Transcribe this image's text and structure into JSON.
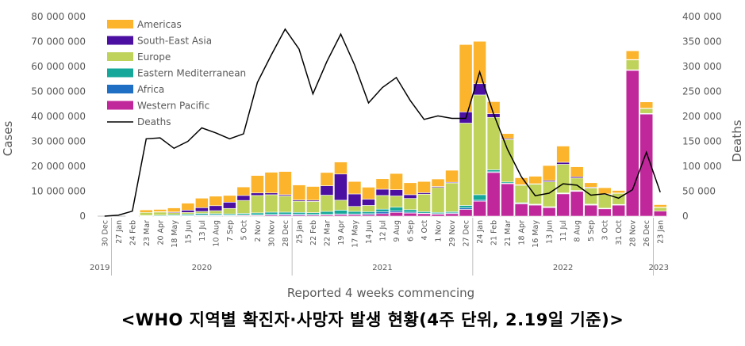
{
  "chart_data": {
    "type": "bar",
    "stacked": true,
    "title": "",
    "xlabel": "Reported 4 weeks commencing",
    "ylabel": "Cases",
    "y2label": "Deaths",
    "ylim": [
      0,
      80000000
    ],
    "y2lim": [
      0,
      400000
    ],
    "yticks": [
      "0",
      "10 000 000",
      "20 000 000",
      "30 000 000",
      "40 000 000",
      "50 000 000",
      "60 000 000",
      "70 000 000",
      "80 000 000"
    ],
    "y2ticks": [
      "0",
      "50 000",
      "100 000",
      "150 000",
      "200 000",
      "250 000",
      "300 000",
      "350 000",
      "400 000"
    ],
    "categories": [
      "30 Dec",
      "27 Jan",
      "24 Feb",
      "23 Mar",
      "20 Apr",
      "18 May",
      "15 Jun",
      "13 Jul",
      "10 Aug",
      "7 Sep",
      "5 Oct",
      "2 Nov",
      "30 Nov",
      "28 Dec",
      "25 Jan",
      "22 Feb",
      "22 Mar",
      "19 Apr",
      "17 May",
      "14 Jun",
      "12 Jul",
      "9 Aug",
      "6 Sep",
      "4 Oct",
      "1 Nov",
      "29 Nov",
      "27 Dec",
      "24 Jan",
      "21 Feb",
      "21 Mar",
      "18 Apr",
      "16 May",
      "13 Jun",
      "11 Jul",
      "8 Aug",
      "5 Sep",
      "3 Oct",
      "31 Oct",
      "28 Nov",
      "26 Dec",
      "23 Jan"
    ],
    "years": [
      {
        "label": "2019",
        "start": 0,
        "end": 0
      },
      {
        "label": "2020",
        "start": 1,
        "end": 13
      },
      {
        "label": "2021",
        "start": 14,
        "end": 26
      },
      {
        "label": "2022",
        "start": 27,
        "end": 39
      },
      {
        "label": "2023",
        "start": 40,
        "end": 40
      }
    ],
    "legend_position": "top-left",
    "series": [
      {
        "name": "Western Pacific",
        "color": "#C0279B",
        "values": [
          0,
          0,
          0.1,
          0.1,
          0.1,
          0.1,
          0.1,
          0.2,
          0.2,
          0.2,
          0.3,
          0.3,
          0.4,
          0.4,
          0.4,
          0.4,
          0.5,
          0.6,
          0.6,
          0.6,
          1.0,
          1.5,
          1.2,
          1.0,
          0.8,
          1.0,
          2.7,
          6.0,
          17.5,
          13.0,
          5.0,
          4.5,
          3.5,
          9.0,
          10.0,
          4.5,
          3.0,
          4.5,
          58.5,
          41.0,
          2.0
        ]
      },
      {
        "name": "Africa",
        "color": "#1F6FC5",
        "values": [
          0,
          0,
          0,
          0,
          0,
          0.1,
          0.2,
          0.3,
          0.3,
          0.2,
          0.2,
          0.2,
          0.3,
          0.4,
          0.4,
          0.3,
          0.2,
          0.3,
          0.3,
          0.4,
          0.8,
          0.6,
          0.4,
          0.2,
          0.2,
          0.3,
          0.6,
          0.4,
          0.3,
          0.2,
          0.1,
          0.1,
          0.1,
          0.1,
          0.1,
          0.1,
          0.1,
          0.1,
          0.1,
          0.1,
          0
        ]
      },
      {
        "name": "Eastern Mediterranean",
        "color": "#15A89A",
        "values": [
          0,
          0,
          0,
          0.2,
          0.3,
          0.4,
          0.5,
          0.6,
          0.5,
          0.5,
          0.6,
          0.8,
          0.9,
          0.8,
          0.7,
          0.7,
          1.2,
          1.5,
          1.0,
          0.8,
          1.0,
          1.5,
          1.0,
          0.6,
          0.5,
          0.5,
          1.0,
          2.2,
          0.8,
          0.5,
          0.3,
          0.2,
          0.2,
          0.2,
          0.2,
          0.2,
          0.1,
          0.1,
          0.1,
          0.1,
          0
        ]
      },
      {
        "name": "Europe",
        "color": "#BFD35B",
        "values": [
          0,
          0,
          0.1,
          1.2,
          1.3,
          0.8,
          0.7,
          0.8,
          1.2,
          2.2,
          5.2,
          7.0,
          7.0,
          6.5,
          4.5,
          4.5,
          6.5,
          4.0,
          2.0,
          2.5,
          5.5,
          4.5,
          4.5,
          7.0,
          10.0,
          11.5,
          33.0,
          40.0,
          21.0,
          17.0,
          7.0,
          8.0,
          10.0,
          11.5,
          5.0,
          6.5,
          5.5,
          4.5,
          4.0,
          2.0,
          1.5
        ]
      },
      {
        "name": "South-East Asia",
        "color": "#4B0FA1",
        "values": [
          0,
          0,
          0,
          0,
          0.1,
          0.3,
          0.9,
          1.5,
          2.0,
          2.5,
          2.0,
          1.0,
          0.7,
          0.5,
          0.5,
          0.5,
          3.8,
          10.5,
          5.0,
          2.5,
          2.5,
          2.5,
          1.5,
          0.6,
          0.4,
          0.3,
          4.5,
          4.5,
          1.5,
          0.4,
          0.2,
          0.2,
          0.5,
          0.8,
          0.5,
          0.3,
          0.2,
          0.1,
          0.1,
          0.1,
          0.1
        ]
      },
      {
        "name": "Americas",
        "color": "#FBB42C",
        "values": [
          0,
          0,
          0.1,
          1.0,
          0.9,
          1.6,
          2.8,
          3.8,
          3.8,
          2.7,
          3.4,
          7.0,
          8.3,
          9.3,
          6.0,
          5.5,
          5.3,
          4.8,
          5.0,
          4.8,
          4.2,
          6.5,
          4.8,
          4.5,
          3.0,
          4.8,
          27.0,
          17.0,
          4.8,
          2.0,
          2.8,
          3.0,
          6.0,
          6.5,
          4.0,
          1.8,
          2.5,
          1.0,
          3.5,
          2.5,
          1.0
        ]
      }
    ],
    "series_values_unit": "millions of cases",
    "line": {
      "name": "Deaths",
      "color": "#000000",
      "values": [
        0,
        2000,
        10000,
        155000,
        157000,
        136000,
        150000,
        177000,
        167000,
        155000,
        165000,
        268000,
        323000,
        375000,
        335000,
        245000,
        310000,
        365000,
        303000,
        227000,
        258000,
        278000,
        232000,
        194000,
        201000,
        196000,
        196000,
        289000,
        205000,
        134000,
        79000,
        41000,
        46000,
        65000,
        62000,
        42000,
        45000,
        36000,
        53000,
        128000,
        48000
      ]
    }
  },
  "caption": "<WHO 지역별 확진자·사망자 발생 현황(4주 단위, 2.19일 기준)>"
}
